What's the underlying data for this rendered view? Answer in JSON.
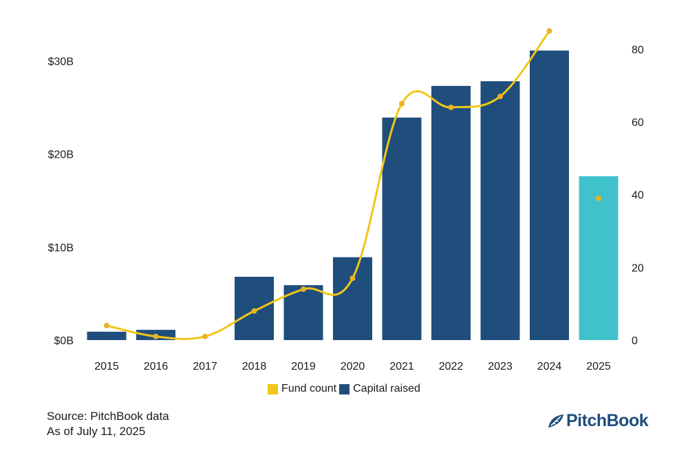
{
  "chart_data": {
    "type": "bar",
    "title": "",
    "categories": [
      "2015",
      "2016",
      "2017",
      "2018",
      "2019",
      "2020",
      "2021",
      "2022",
      "2023",
      "2024",
      "2025"
    ],
    "series": [
      {
        "name": "Capital raised",
        "type": "bar",
        "axis": "left",
        "values": [
          0.9,
          1.1,
          0,
          6.8,
          5.9,
          8.9,
          23.9,
          27.3,
          27.8,
          31.1,
          17.6
        ]
      },
      {
        "name": "Fund count",
        "type": "line",
        "axis": "right",
        "values": [
          4,
          1,
          1,
          8,
          14,
          17,
          65,
          64,
          67,
          85,
          39
        ]
      }
    ],
    "left_axis": {
      "ticks": [
        "$0B",
        "$10B",
        "$20B",
        "$30B"
      ],
      "tick_values": [
        0,
        10,
        20,
        30
      ],
      "ylim": [
        0,
        33.2
      ]
    },
    "right_axis": {
      "ticks": [
        "0",
        "20",
        "40",
        "60",
        "80"
      ],
      "tick_values": [
        0,
        20,
        40,
        60,
        80
      ],
      "ylim": [
        0,
        85
      ]
    },
    "highlight_category": "2025",
    "legend": [
      {
        "label": "Fund count",
        "key": "fund_count"
      },
      {
        "label": "Capital raised",
        "key": "capital_raised"
      }
    ],
    "legend_position": "bottom-center",
    "grid": false
  },
  "colors": {
    "bar": "#1f4e7c",
    "bar_highlight": "#40c2cc",
    "line": "#f2c618",
    "line_marker": "#e9b324",
    "brand": "#1f4e7c"
  },
  "footer": {
    "source": "Source: PitchBook data",
    "as_of": "As of July 11, 2025",
    "brand": "PitchBook"
  }
}
